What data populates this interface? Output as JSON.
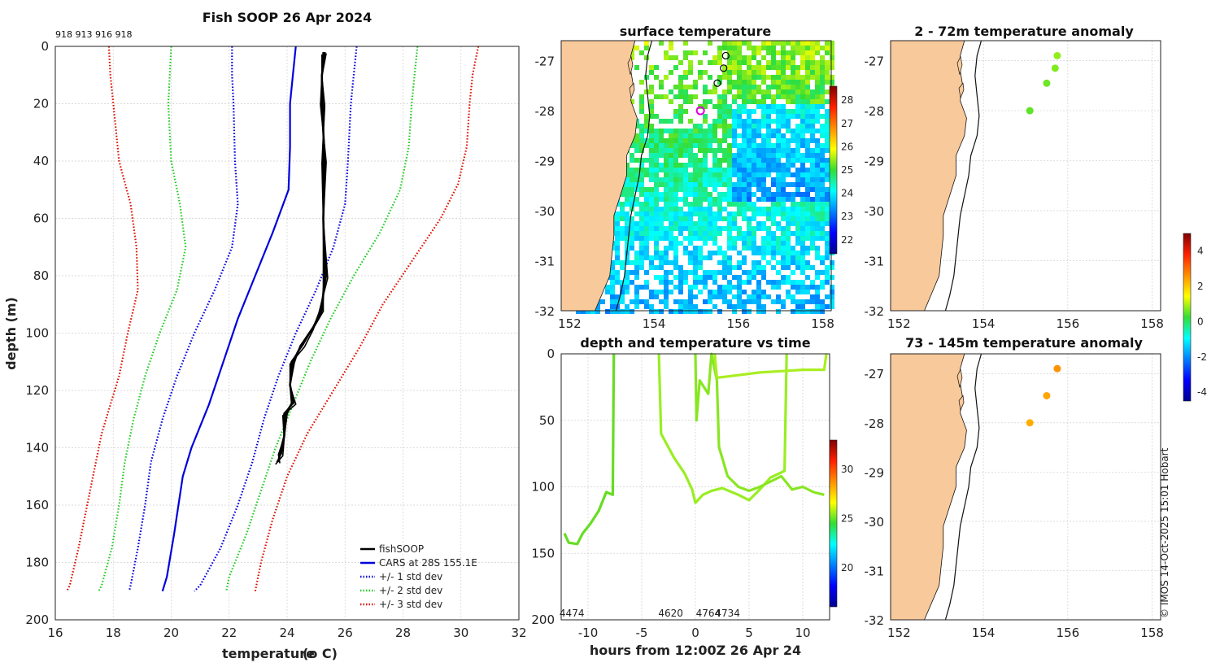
{
  "chart_data": [
    {
      "id": "profile",
      "type": "line",
      "title": "Fish SOOP 26 Apr 2024",
      "ids_label": "918 913 916 918",
      "xlabel": "temperature",
      "xlabel_unit": "(o C)",
      "ylabel": "depth (m)",
      "xlim": [
        16,
        32
      ],
      "ylim": [
        0,
        200
      ],
      "xticks": [
        16,
        18,
        20,
        22,
        24,
        26,
        28,
        30,
        32
      ],
      "yticks": [
        0,
        20,
        40,
        60,
        80,
        100,
        120,
        140,
        160,
        180,
        200
      ],
      "series": [
        {
          "name": "CARS at 28S 155.1E",
          "legend": "CARS at 28S 155.1E",
          "style": "solid",
          "color": "#0000dd",
          "points": [
            [
              24.3,
              0
            ],
            [
              24.2,
              10
            ],
            [
              24.1,
              20
            ],
            [
              24.1,
              35
            ],
            [
              24.05,
              50
            ],
            [
              23.5,
              65
            ],
            [
              22.9,
              80
            ],
            [
              22.3,
              95
            ],
            [
              21.8,
              110
            ],
            [
              21.3,
              125
            ],
            [
              20.7,
              140
            ],
            [
              20.4,
              150
            ],
            [
              20.1,
              170
            ],
            [
              19.85,
              185
            ],
            [
              19.7,
              190
            ]
          ]
        },
        {
          "name": "+1 std",
          "legend": "+/- 1 std dev",
          "style": "dotted",
          "color": "#0000dd",
          "points": [
            [
              26.4,
              0
            ],
            [
              26.3,
              10
            ],
            [
              26.2,
              20
            ],
            [
              26.1,
              40
            ],
            [
              26.0,
              55
            ],
            [
              25.6,
              70
            ],
            [
              25.0,
              85
            ],
            [
              24.3,
              100
            ],
            [
              23.7,
              115
            ],
            [
              23.2,
              130
            ],
            [
              22.8,
              145
            ],
            [
              22.3,
              160
            ],
            [
              21.7,
              175
            ],
            [
              21.0,
              188
            ],
            [
              20.8,
              190
            ]
          ]
        },
        {
          "name": "-1 std",
          "legend": "",
          "style": "dotted",
          "color": "#0000dd",
          "points": [
            [
              22.1,
              0
            ],
            [
              22.1,
              10
            ],
            [
              22.15,
              20
            ],
            [
              22.2,
              40
            ],
            [
              22.3,
              55
            ],
            [
              22.1,
              70
            ],
            [
              21.5,
              85
            ],
            [
              20.8,
              100
            ],
            [
              20.2,
              115
            ],
            [
              19.7,
              130
            ],
            [
              19.3,
              145
            ],
            [
              19.1,
              160
            ],
            [
              18.85,
              175
            ],
            [
              18.6,
              188
            ],
            [
              18.55,
              190
            ]
          ]
        },
        {
          "name": "+2 std",
          "legend": "+/- 2 std dev",
          "style": "dotted",
          "color": "#22cc22",
          "points": [
            [
              28.5,
              0
            ],
            [
              28.4,
              10
            ],
            [
              28.3,
              20
            ],
            [
              28.2,
              35
            ],
            [
              27.9,
              50
            ],
            [
              27.2,
              65
            ],
            [
              26.3,
              80
            ],
            [
              25.5,
              95
            ],
            [
              24.8,
              110
            ],
            [
              24.2,
              125
            ],
            [
              23.6,
              140
            ],
            [
              23.1,
              155
            ],
            [
              22.6,
              170
            ],
            [
              22.0,
              185
            ],
            [
              21.9,
              190
            ]
          ]
        },
        {
          "name": "-2 std",
          "legend": "",
          "style": "dotted",
          "color": "#22cc22",
          "points": [
            [
              20.0,
              0
            ],
            [
              19.95,
              10
            ],
            [
              19.9,
              20
            ],
            [
              20.0,
              40
            ],
            [
              20.3,
              55
            ],
            [
              20.5,
              70
            ],
            [
              20.2,
              85
            ],
            [
              19.6,
              100
            ],
            [
              19.1,
              115
            ],
            [
              18.7,
              130
            ],
            [
              18.4,
              145
            ],
            [
              18.2,
              160
            ],
            [
              17.95,
              175
            ],
            [
              17.6,
              188
            ],
            [
              17.5,
              190
            ]
          ]
        },
        {
          "name": "+3 std",
          "legend": "+/- 3 std dev",
          "style": "dotted",
          "color": "#dd1100",
          "points": [
            [
              30.6,
              0
            ],
            [
              30.4,
              10
            ],
            [
              30.3,
              20
            ],
            [
              30.2,
              35
            ],
            [
              29.9,
              48
            ],
            [
              29.3,
              60
            ],
            [
              28.3,
              75
            ],
            [
              27.3,
              90
            ],
            [
              26.5,
              105
            ],
            [
              25.6,
              120
            ],
            [
              24.7,
              135
            ],
            [
              24.0,
              150
            ],
            [
              23.5,
              165
            ],
            [
              23.1,
              180
            ],
            [
              22.9,
              190
            ]
          ]
        },
        {
          "name": "-3 std",
          "legend": "",
          "style": "dotted",
          "color": "#dd1100",
          "points": [
            [
              17.85,
              0
            ],
            [
              17.9,
              10
            ],
            [
              18.0,
              20
            ],
            [
              18.2,
              40
            ],
            [
              18.6,
              55
            ],
            [
              18.8,
              70
            ],
            [
              18.85,
              85
            ],
            [
              18.5,
              100
            ],
            [
              18.2,
              115
            ],
            [
              17.9,
              125
            ],
            [
              17.6,
              135
            ],
            [
              17.3,
              150
            ],
            [
              17.0,
              165
            ],
            [
              16.8,
              175
            ],
            [
              16.5,
              188
            ],
            [
              16.4,
              190
            ]
          ]
        },
        {
          "name": "fishSOOP",
          "legend": "fishSOOP",
          "style": "solid",
          "color": "#000000",
          "points": [
            [
              25.3,
              2
            ],
            [
              25.2,
              10
            ],
            [
              25.2,
              20
            ],
            [
              25.3,
              40
            ],
            [
              25.25,
              60
            ],
            [
              25.3,
              80
            ],
            [
              25.2,
              92
            ],
            [
              24.9,
              98
            ],
            [
              24.5,
              104
            ],
            [
              24.2,
              110
            ],
            [
              24.1,
              118
            ],
            [
              24.2,
              124
            ],
            [
              23.95,
              128
            ],
            [
              23.9,
              136
            ],
            [
              23.75,
              142
            ],
            [
              23.7,
              145
            ]
          ]
        }
      ]
    },
    {
      "id": "sst",
      "type": "heatmap",
      "title": "surface temperature",
      "xlim": [
        151.8,
        158.2
      ],
      "ylim": [
        -32,
        -26.6
      ],
      "xticks": [
        152,
        154,
        156,
        158
      ],
      "yticks": [
        -27,
        -28,
        -29,
        -30,
        -31,
        -32
      ],
      "colorbar": {
        "ticks": [
          22,
          23,
          24,
          25,
          26,
          27,
          28
        ]
      },
      "stations": [
        [
          155.7,
          -26.9
        ],
        [
          155.65,
          -27.15
        ],
        [
          155.5,
          -27.45
        ]
      ],
      "current_station": [
        155.1,
        -28.0
      ]
    },
    {
      "id": "depthtime",
      "type": "line",
      "title": "depth and temperature vs time",
      "xlabel": "hours from 12:00Z 26 Apr 24",
      "xlim": [
        -12.5,
        12.5
      ],
      "ylim": [
        0,
        200
      ],
      "xticks": [
        -10,
        -5,
        0,
        5,
        10
      ],
      "yticks": [
        0,
        50,
        100,
        150,
        200
      ],
      "colorbar": {
        "ticks": [
          20,
          25,
          30
        ]
      },
      "annotations": [
        {
          "text": "4474",
          "x": -11.5
        },
        {
          "text": "4620",
          "x": -2.3
        },
        {
          "text": "4764",
          "x": 1.2
        },
        {
          "text": "4734",
          "x": 3.0
        }
      ]
    },
    {
      "id": "anom1",
      "type": "scatter",
      "title": "2 - 72m temperature anomaly",
      "xlim": [
        151.8,
        158.2
      ],
      "ylim": [
        -32,
        -26.6
      ],
      "xticks": [
        152,
        154,
        156,
        158
      ],
      "yticks": [
        -27,
        -28,
        -29,
        -30,
        -31,
        -32
      ],
      "points": [
        {
          "lon": 155.75,
          "lat": -26.9,
          "anomaly": 0.8
        },
        {
          "lon": 155.7,
          "lat": -27.15,
          "anomaly": 0.7
        },
        {
          "lon": 155.5,
          "lat": -27.45,
          "anomaly": 0.6
        },
        {
          "lon": 155.1,
          "lat": -28.0,
          "anomaly": 0.5
        }
      ]
    },
    {
      "id": "anom2",
      "type": "scatter",
      "title": "73 - 145m temperature anomaly",
      "xlim": [
        151.8,
        158.2
      ],
      "ylim": [
        -32,
        -26.6
      ],
      "xticks": [
        152,
        154,
        156,
        158
      ],
      "yticks": [
        -27,
        -28,
        -29,
        -30,
        -31,
        -32
      ],
      "points": [
        {
          "lon": 155.75,
          "lat": -26.9,
          "anomaly": 2.6
        },
        {
          "lon": 155.5,
          "lat": -27.45,
          "anomaly": 2.4
        },
        {
          "lon": 155.1,
          "lat": -28.0,
          "anomaly": 2.3
        }
      ],
      "colorbar": {
        "ticks": [
          -4,
          -2,
          0,
          2,
          4
        ]
      }
    }
  ],
  "credit": "© IMOS 14-Oct-2025 15:01 Hobart"
}
